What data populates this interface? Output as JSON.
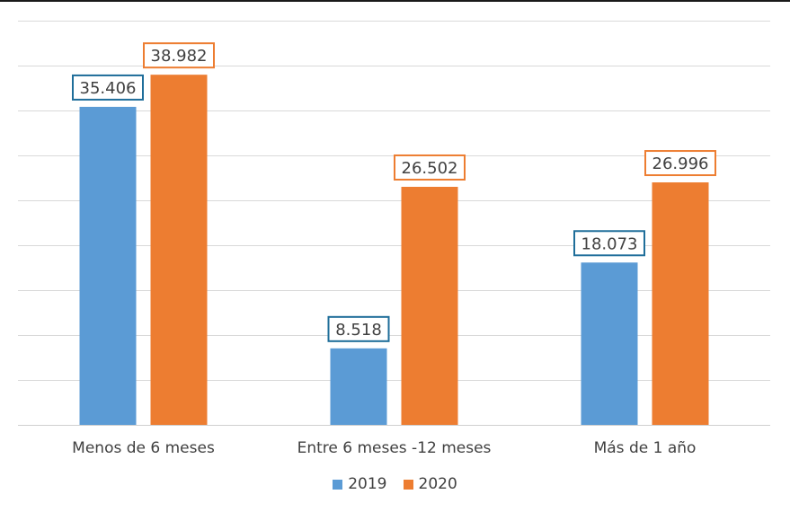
{
  "chart_data": {
    "type": "bar",
    "categories": [
      "Menos de 6 meses",
      "Entre 6 meses -12 meses",
      "Más de 1 año"
    ],
    "series": [
      {
        "name": "2019",
        "values": [
          35.406,
          8.518,
          18.073
        ],
        "labels": [
          "35.406",
          "8.518",
          "18.073"
        ],
        "color": "#5b9bd5",
        "label_border": "#1f6e9a"
      },
      {
        "name": "2020",
        "values": [
          38.982,
          26.502,
          26.996
        ],
        "labels": [
          "38.982",
          "26.502",
          "26.996"
        ],
        "color": "#ed7d31",
        "label_border": "#ed7d31"
      }
    ],
    "ylim": [
      0,
      45
    ],
    "gridlines": true,
    "gridline_step": 5,
    "legend_position": "bottom",
    "title": "",
    "xlabel": "",
    "ylabel": ""
  }
}
